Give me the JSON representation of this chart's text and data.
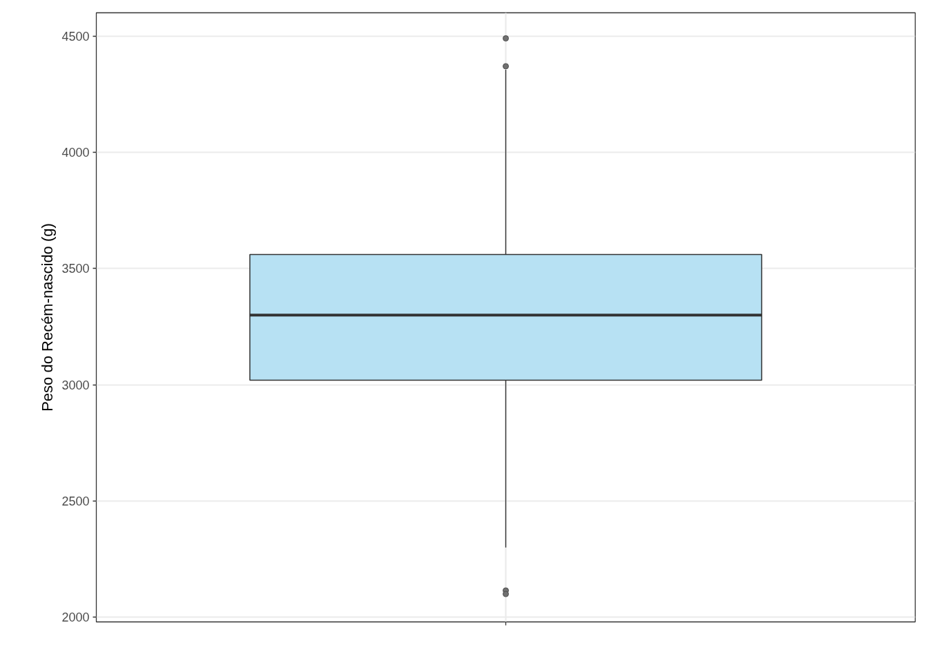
{
  "chart_data": {
    "type": "box",
    "ylabel": "Peso do Recém-nascido (g)",
    "categories": [
      null
    ],
    "series": [
      {
        "color": "#b7e1f3",
        "boxes": [
          {
            "low": 2300,
            "q1": 3020,
            "median": 3300,
            "q3": 3560,
            "high": 4355,
            "outliers": [
              4490,
              4370,
              2115,
              2100
            ]
          }
        ]
      }
    ],
    "ylim": [
      1980,
      4600
    ],
    "yticks": [
      2000,
      2500,
      3000,
      3500,
      4000,
      4500
    ],
    "grid": true,
    "tick_labels": "y"
  }
}
